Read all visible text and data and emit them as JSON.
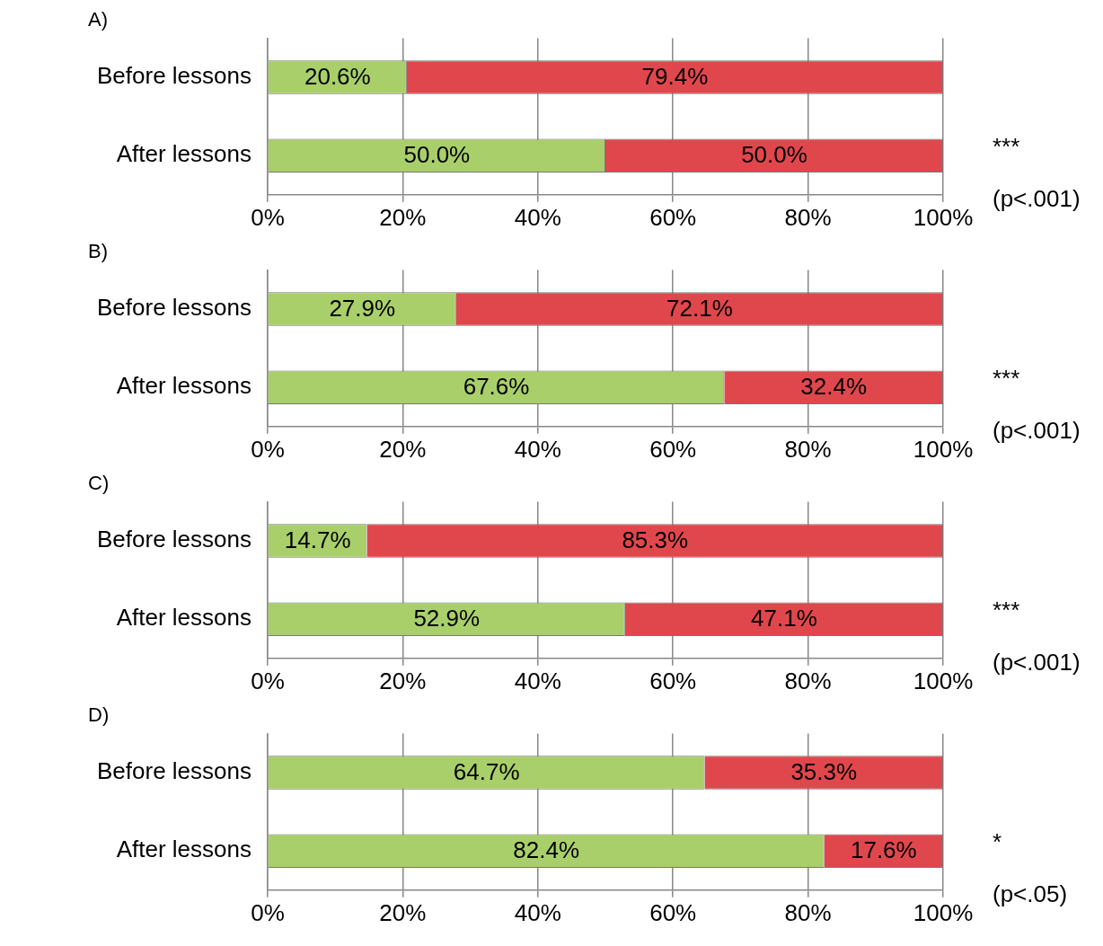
{
  "chart_data": [
    {
      "type": "bar",
      "orientation": "horizontal",
      "stacked": true,
      "title": "A)",
      "categories": [
        "Before lessons",
        "After lessons"
      ],
      "series": [
        {
          "color": "#a9cf6a",
          "values": [
            20.6,
            50.0
          ],
          "value_labels": [
            "20.6%",
            "50.0%"
          ]
        },
        {
          "color": "#e0474c",
          "values": [
            79.4,
            50.0
          ],
          "value_labels": [
            "79.4%",
            "50.0%"
          ]
        }
      ],
      "xlim": [
        0,
        100
      ],
      "xticks": [
        {
          "value": 0,
          "label": "0%"
        },
        {
          "value": 20,
          "label": "20%"
        },
        {
          "value": 40,
          "label": "40%"
        },
        {
          "value": 60,
          "label": "60%"
        },
        {
          "value": 80,
          "label": "80%"
        },
        {
          "value": 100,
          "label": "100%"
        }
      ],
      "grid": "x",
      "annotations": [
        "***",
        "(p<.001)"
      ]
    },
    {
      "type": "bar",
      "orientation": "horizontal",
      "stacked": true,
      "title": "B)",
      "categories": [
        "Before lessons",
        "After lessons"
      ],
      "series": [
        {
          "color": "#a9cf6a",
          "values": [
            27.9,
            67.6
          ],
          "value_labels": [
            "27.9%",
            "67.6%"
          ]
        },
        {
          "color": "#e0474c",
          "values": [
            72.1,
            32.4
          ],
          "value_labels": [
            "72.1%",
            "32.4%"
          ]
        }
      ],
      "xlim": [
        0,
        100
      ],
      "xticks": [
        {
          "value": 0,
          "label": "0%"
        },
        {
          "value": 20,
          "label": "20%"
        },
        {
          "value": 40,
          "label": "40%"
        },
        {
          "value": 60,
          "label": "60%"
        },
        {
          "value": 80,
          "label": "80%"
        },
        {
          "value": 100,
          "label": "100%"
        }
      ],
      "grid": "x",
      "annotations": [
        "***",
        "(p<.001)"
      ]
    },
    {
      "type": "bar",
      "orientation": "horizontal",
      "stacked": true,
      "title": "C)",
      "categories": [
        "Before lessons",
        "After lessons"
      ],
      "series": [
        {
          "color": "#a9cf6a",
          "values": [
            14.7,
            52.9
          ],
          "value_labels": [
            "14.7%",
            "52.9%"
          ]
        },
        {
          "color": "#e0474c",
          "values": [
            85.3,
            47.1
          ],
          "value_labels": [
            "85.3%",
            "47.1%"
          ]
        }
      ],
      "xlim": [
        0,
        100
      ],
      "xticks": [
        {
          "value": 0,
          "label": "0%"
        },
        {
          "value": 20,
          "label": "20%"
        },
        {
          "value": 40,
          "label": "40%"
        },
        {
          "value": 60,
          "label": "60%"
        },
        {
          "value": 80,
          "label": "80%"
        },
        {
          "value": 100,
          "label": "100%"
        }
      ],
      "grid": "x",
      "annotations": [
        "***",
        "(p<.001)"
      ]
    },
    {
      "type": "bar",
      "orientation": "horizontal",
      "stacked": true,
      "title": "D)",
      "categories": [
        "Before lessons",
        "After lessons"
      ],
      "series": [
        {
          "color": "#a9cf6a",
          "values": [
            64.7,
            82.4
          ],
          "value_labels": [
            "64.7%",
            "82.4%"
          ]
        },
        {
          "color": "#e0474c",
          "values": [
            35.3,
            17.6
          ],
          "value_labels": [
            "35.3%",
            "17.6%"
          ]
        }
      ],
      "xlim": [
        0,
        100
      ],
      "xticks": [
        {
          "value": 0,
          "label": "0%"
        },
        {
          "value": 20,
          "label": "20%"
        },
        {
          "value": 40,
          "label": "40%"
        },
        {
          "value": 60,
          "label": "60%"
        },
        {
          "value": 80,
          "label": "80%"
        },
        {
          "value": 100,
          "label": "100%"
        }
      ],
      "grid": "x",
      "annotations": [
        "*",
        "(p<.05)"
      ]
    }
  ]
}
